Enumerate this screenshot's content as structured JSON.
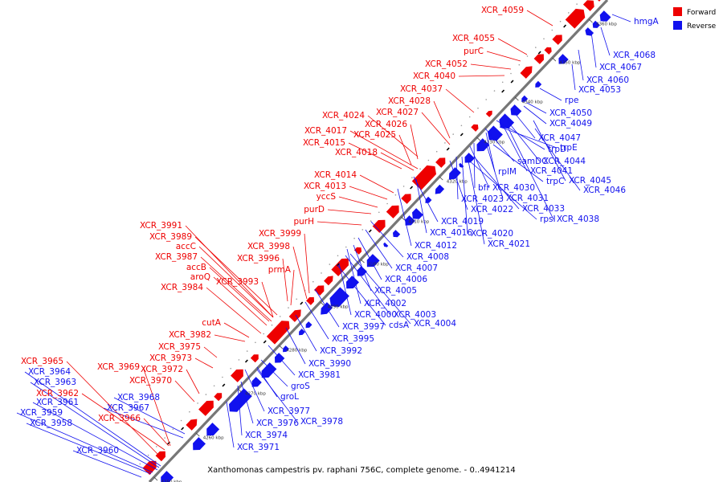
{
  "colors": {
    "forward": "#ee0000",
    "reverse": "#1111ee",
    "backbone": "#777777",
    "rna": "#000000"
  },
  "legend": {
    "forward": "Forward",
    "reverse": "Reverse"
  },
  "caption": "Xanthomonas campestris pv. raphani 756C, complete genome. - 0..4941214",
  "ticks": [
    "4250 kbp",
    "4260 kbp",
    "4270 kbp",
    "4280 kbp",
    "4290 kbp",
    "4300 kbp",
    "4310 kbp",
    "4320 kbp",
    "4330 kbp",
    "4340 kbp",
    "4350 kbp",
    "4360 kbp"
  ],
  "forward_labels": [
    "XCR_4059",
    "XCR_4055",
    "purC",
    "XCR_4052",
    "XCR_4040",
    "XCR_4037",
    "XCR_4028",
    "XCR_4027",
    "XCR_4024",
    "XCR_4026",
    "XCR_4025",
    "XCR_4017",
    "XCR_4015",
    "XCR_4018",
    "XCR_4014",
    "XCR_4013",
    "yccS",
    "purD",
    "purH",
    "XCR_3991",
    "XCR_3989",
    "XCR_3999",
    "accC",
    "XCR_3998",
    "XCR_3987",
    "XCR_3996",
    "accB",
    "prmA",
    "aroQ",
    "XCR_3993",
    "XCR_3984",
    "cutA",
    "XCR_3982",
    "XCR_3975",
    "XCR_3973",
    "XCR_3969",
    "XCR_3972",
    "XCR_3970",
    "XCR_3965",
    "XCR_3962",
    "XCR_3966"
  ],
  "reverse_labels": [
    "hmgA",
    "XCR_4068",
    "XCR_4067",
    "XCR_4060",
    "XCR_4053",
    "rpe",
    "XCR_4050",
    "XCR_4049",
    "XCR_4047",
    "trpD",
    "trpE",
    "samDC",
    "XCR_4044",
    "rplM",
    "XCR_4041",
    "trpC",
    "XCR_4045",
    "XCR_4046",
    "bfr",
    "XCR_4030",
    "XCR_4023",
    "XCR_4031",
    "XCR_4022",
    "XCR_4033",
    "rpsI",
    "XCR_4038",
    "XCR_4019",
    "XCR_4016",
    "XCR_4020",
    "XCR_4012",
    "XCR_4021",
    "XCR_4008",
    "XCR_4007",
    "XCR_4006",
    "XCR_4005",
    "XCR_4002",
    "XCR_4000",
    "XCR_4003",
    "cdsA",
    "XCR_4004",
    "XCR_3997",
    "XCR_3995",
    "XCR_3992",
    "XCR_3990",
    "XCR_3981",
    "groS",
    "groL",
    "XCR_3977",
    "XCR_3978",
    "XCR_3976",
    "XCR_3974",
    "XCR_3971",
    "XCR_3964",
    "XCR_3963",
    "XCR_3968",
    "XCR_3961",
    "XCR_3967",
    "XCR_3959",
    "XCR_3958",
    "XCR_3960"
  ]
}
